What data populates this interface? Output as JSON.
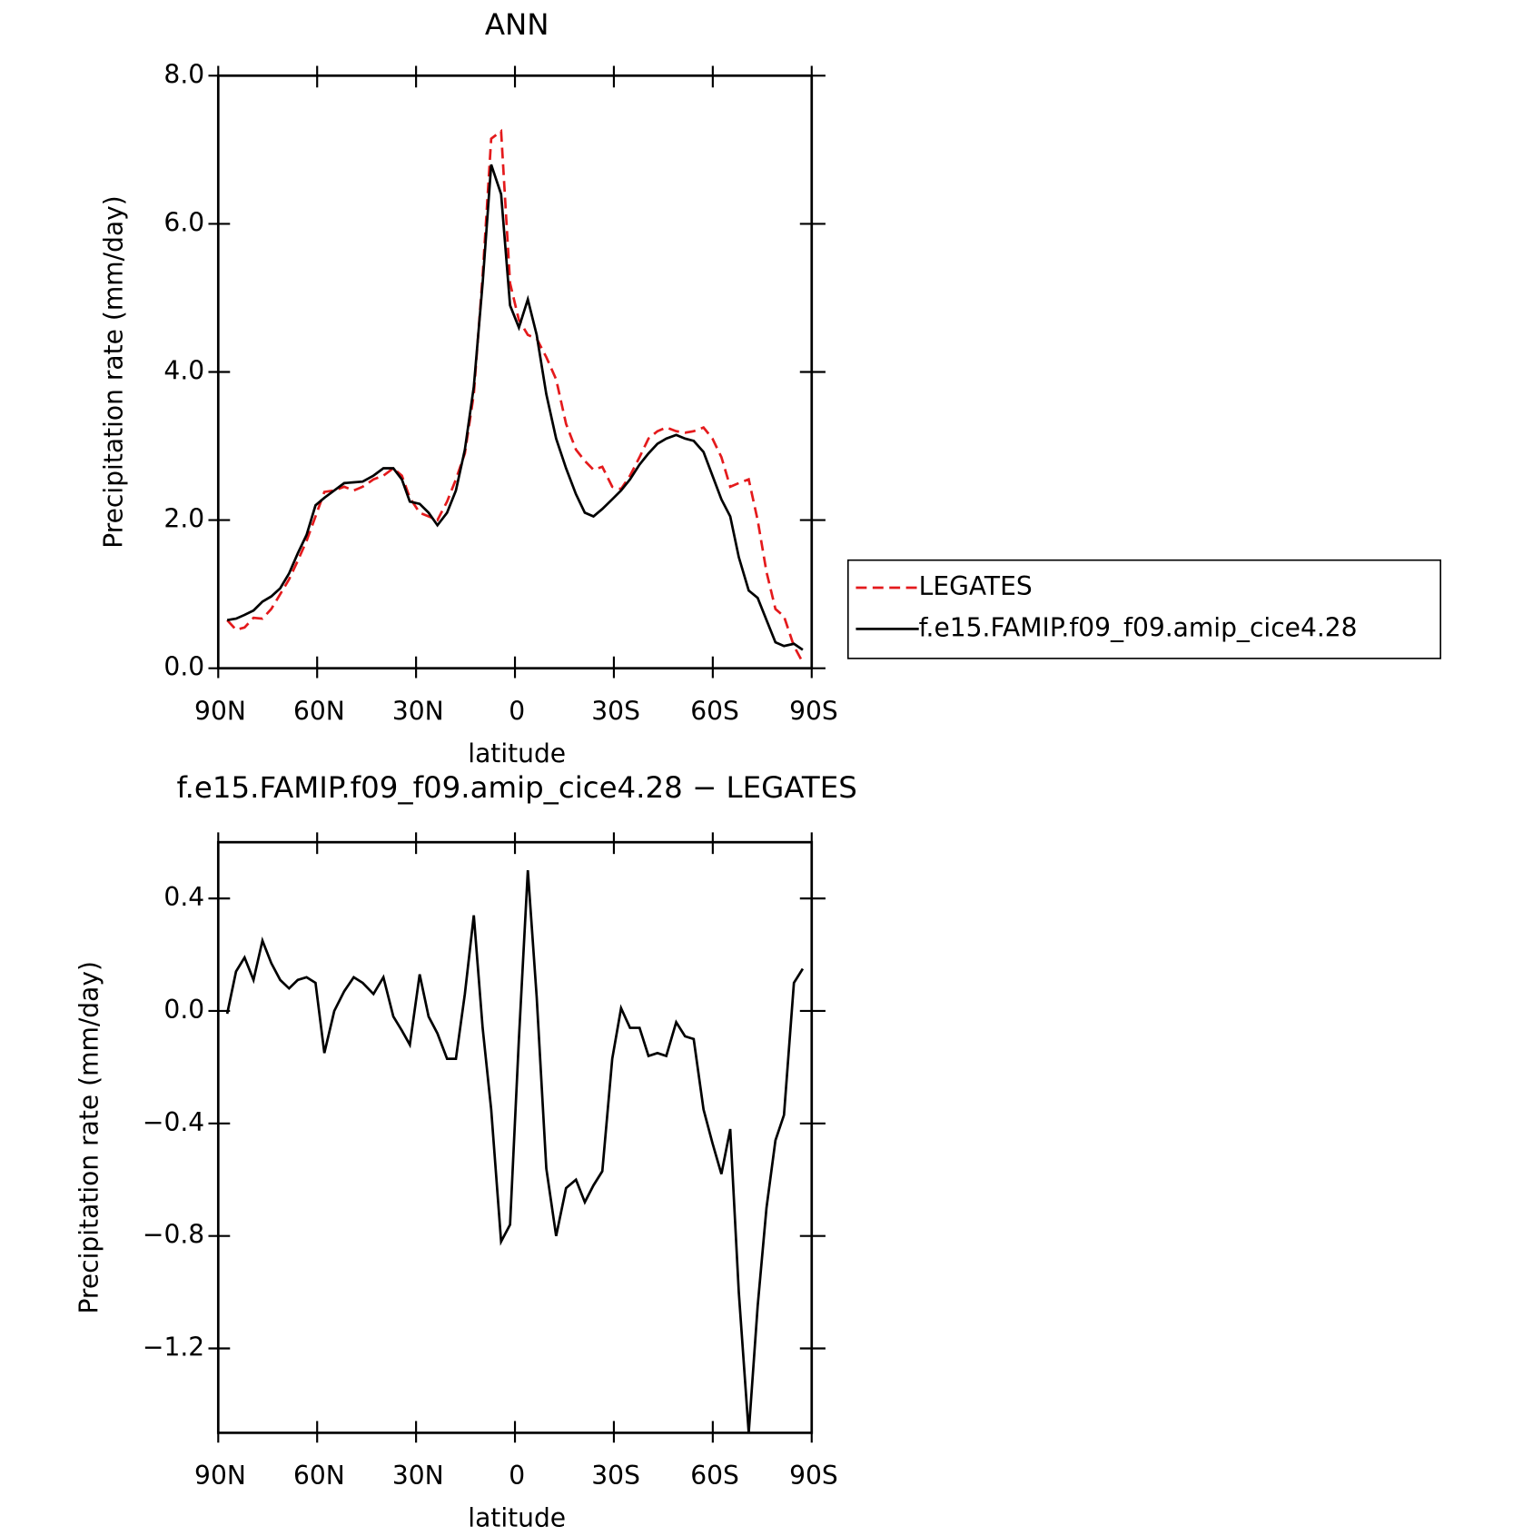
{
  "chart_data": [
    {
      "type": "line",
      "title": "ANN",
      "xlabel": "latitude",
      "ylabel": "Precipitation rate (mm/day)",
      "x": [
        87.3,
        84.6,
        82.0,
        79.3,
        76.6,
        73.9,
        71.2,
        68.5,
        65.9,
        63.2,
        60.5,
        57.8,
        54.8,
        51.8,
        48.9,
        46.2,
        42.9,
        39.9,
        36.9,
        34.3,
        31.9,
        28.9,
        26.2,
        23.5,
        20.6,
        17.9,
        15.2,
        12.5,
        9.8,
        7.2,
        4.2,
        1.5,
        -1.2,
        -3.9,
        -6.6,
        -9.5,
        -12.5,
        -15.5,
        -18.5,
        -21.2,
        -23.8,
        -26.5,
        -29.5,
        -32.2,
        -34.9,
        -37.8,
        -40.5,
        -43.2,
        -45.9,
        -48.9,
        -51.6,
        -54.2,
        -57.2,
        -59.9,
        -62.6,
        -65.3,
        -67.9,
        -70.9,
        -73.6,
        -76.3,
        -79.0,
        -81.6,
        -84.6,
        -87.3
      ],
      "series": [
        {
          "name": "LEGATES",
          "color": "#e41a1c",
          "dashed": true,
          "values": [
            0.65,
            0.52,
            0.55,
            0.68,
            0.67,
            0.8,
            1.0,
            1.2,
            1.45,
            1.72,
            2.05,
            2.38,
            2.4,
            2.45,
            2.4,
            2.45,
            2.55,
            2.6,
            2.7,
            2.6,
            2.3,
            2.1,
            2.05,
            2.0,
            2.25,
            2.55,
            2.9,
            3.7,
            5.3,
            7.15,
            7.25,
            5.2,
            4.7,
            4.5,
            4.45,
            4.2,
            3.9,
            3.3,
            2.95,
            2.8,
            2.68,
            2.72,
            2.45,
            2.42,
            2.6,
            2.85,
            3.1,
            3.2,
            3.25,
            3.2,
            3.18,
            3.2,
            3.25,
            3.1,
            2.85,
            2.45,
            2.5,
            2.55,
            2.0,
            1.3,
            0.8,
            0.7,
            0.3,
            0.08
          ]
        },
        {
          "name": "f.e15.FAMIP.f09_f09.amip_cice4.28",
          "color": "#000000",
          "dashed": false,
          "values": [
            0.65,
            0.67,
            0.72,
            0.78,
            0.9,
            0.97,
            1.08,
            1.28,
            1.55,
            1.8,
            2.2,
            2.3,
            2.4,
            2.5,
            2.51,
            2.52,
            2.6,
            2.7,
            2.7,
            2.55,
            2.25,
            2.22,
            2.1,
            1.93,
            2.1,
            2.4,
            2.95,
            3.8,
            5.2,
            6.8,
            6.4,
            4.9,
            4.6,
            4.98,
            4.5,
            3.7,
            3.1,
            2.7,
            2.35,
            2.1,
            2.05,
            2.15,
            2.28,
            2.4,
            2.55,
            2.75,
            2.9,
            3.03,
            3.1,
            3.15,
            3.1,
            3.07,
            2.92,
            2.6,
            2.28,
            2.05,
            1.5,
            1.05,
            0.95,
            0.65,
            0.35,
            0.3,
            0.33,
            0.25
          ]
        }
      ],
      "xlim": [
        90,
        -90
      ],
      "xticks": [
        {
          "value": 90,
          "label": "90N"
        },
        {
          "value": 60,
          "label": "60N"
        },
        {
          "value": 30,
          "label": "30N"
        },
        0,
        {
          "value": -30,
          "label": "30S"
        },
        {
          "value": -60,
          "label": "60S"
        },
        {
          "value": -90,
          "label": "90S"
        }
      ],
      "ylim": [
        0,
        8
      ],
      "yticks": [
        {
          "value": 0,
          "label": "0.0"
        },
        {
          "value": 2,
          "label": "2.0"
        },
        {
          "value": 4,
          "label": "4.0"
        },
        {
          "value": 6,
          "label": "6.0"
        },
        {
          "value": 8,
          "label": "8.0"
        }
      ],
      "legend": "right"
    },
    {
      "type": "line",
      "title": "f.e15.FAMIP.f09_f09.amip_cice4.28 − LEGATES",
      "xlabel": "latitude",
      "ylabel": "Precipitation rate (mm/day)",
      "x": [
        87.3,
        84.6,
        82.0,
        79.3,
        76.6,
        73.9,
        71.2,
        68.5,
        65.9,
        63.2,
        60.5,
        57.8,
        54.8,
        51.8,
        48.9,
        46.2,
        42.9,
        39.9,
        36.9,
        34.3,
        31.9,
        28.9,
        26.2,
        23.5,
        20.6,
        17.9,
        15.2,
        12.5,
        9.8,
        7.2,
        4.2,
        1.5,
        -1.2,
        -3.9,
        -6.6,
        -9.5,
        -12.5,
        -15.5,
        -18.5,
        -21.2,
        -23.8,
        -26.5,
        -29.5,
        -32.2,
        -34.9,
        -37.8,
        -40.5,
        -43.2,
        -45.9,
        -48.9,
        -51.6,
        -54.2,
        -57.2,
        -59.9,
        -62.6,
        -65.3,
        -67.9,
        -70.9,
        -73.6,
        -76.3,
        -79.0,
        -81.6,
        -84.6,
        -87.3
      ],
      "values": [
        -0.01,
        0.14,
        0.19,
        0.11,
        0.25,
        0.17,
        0.11,
        0.08,
        0.11,
        0.12,
        0.1,
        -0.15,
        0.0,
        0.07,
        0.12,
        0.1,
        0.06,
        0.12,
        -0.02,
        -0.07,
        -0.12,
        0.13,
        -0.02,
        -0.08,
        -0.17,
        -0.17,
        0.06,
        0.34,
        -0.06,
        -0.35,
        -0.82,
        -0.76,
        -0.1,
        0.5,
        0.05,
        -0.56,
        -0.8,
        -0.63,
        -0.6,
        -0.68,
        -0.62,
        -0.57,
        -0.17,
        0.01,
        -0.06,
        -0.06,
        -0.16,
        -0.15,
        -0.16,
        -0.04,
        -0.09,
        -0.1,
        -0.35,
        -0.47,
        -0.58,
        -0.42,
        -1.0,
        -1.5,
        -1.05,
        -0.7,
        -0.46,
        -0.37,
        0.1,
        0.15
      ],
      "color": "#000000",
      "xlim": [
        90,
        -90
      ],
      "xticks": [
        {
          "value": 90,
          "label": "90N"
        },
        {
          "value": 60,
          "label": "60N"
        },
        {
          "value": 30,
          "label": "30N"
        },
        0,
        {
          "value": -30,
          "label": "30S"
        },
        {
          "value": -60,
          "label": "60S"
        },
        {
          "value": -90,
          "label": "90S"
        }
      ],
      "ylim": [
        -1.5,
        0.6
      ],
      "yticks": [
        {
          "value": -1.2,
          "label": "−1.2"
        },
        {
          "value": -0.8,
          "label": "−0.8"
        },
        {
          "value": -0.4,
          "label": "−0.4"
        },
        {
          "value": 0,
          "label": "0.0"
        },
        0.4
      ]
    }
  ]
}
